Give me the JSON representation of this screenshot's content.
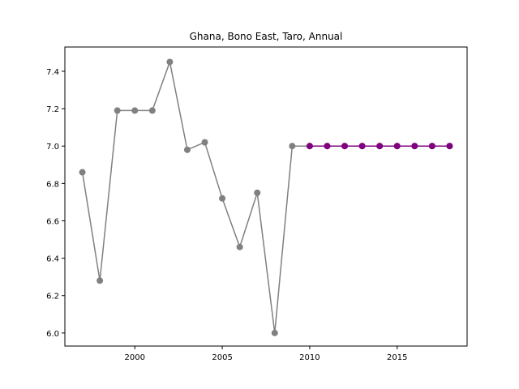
{
  "chart_data": {
    "type": "line",
    "title": "Ghana, Bono East, Taro, Annual",
    "xlabel": "",
    "ylabel": "",
    "xlim": [
      1996.0,
      2019.0
    ],
    "ylim": [
      5.93,
      7.53
    ],
    "x_ticks": [
      2000,
      2005,
      2010,
      2015
    ],
    "y_ticks": [
      6.0,
      6.2,
      6.4,
      6.6,
      6.8,
      7.0,
      7.2,
      7.4
    ],
    "x_tick_labels": [
      "2000",
      "2005",
      "2010",
      "2015"
    ],
    "y_tick_labels": [
      "6.0",
      "6.2",
      "6.4",
      "6.6",
      "6.8",
      "7.0",
      "7.2",
      "7.4"
    ],
    "grid": false,
    "series": [
      {
        "color": "#808080",
        "x": [
          1997,
          1998,
          1999,
          2000,
          2001,
          2002,
          2003,
          2004,
          2005,
          2006,
          2007,
          2008,
          2009,
          2010,
          2011,
          2012,
          2013,
          2014,
          2015,
          2016,
          2017,
          2018
        ],
        "values": [
          6.86,
          6.28,
          7.19,
          7.19,
          7.19,
          7.45,
          6.98,
          7.02,
          6.72,
          6.46,
          6.75,
          6.0,
          7.0,
          7.0,
          7.0,
          7.0,
          7.0,
          7.0,
          7.0,
          7.0,
          7.0,
          7.0
        ]
      },
      {
        "color": "#800080",
        "x": [
          2010,
          2011,
          2012,
          2013,
          2014,
          2015,
          2016,
          2017,
          2018
        ],
        "values": [
          7.0,
          7.0,
          7.0,
          7.0,
          7.0,
          7.0,
          7.0,
          7.0,
          7.0
        ]
      }
    ]
  }
}
